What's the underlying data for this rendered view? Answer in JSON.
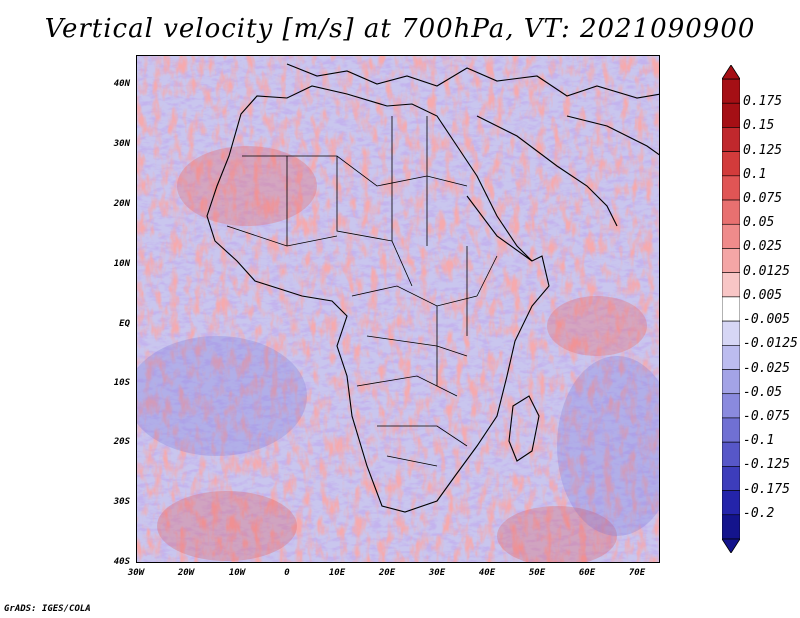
{
  "title": "Vertical velocity [m/s] at 700hPa, VT: 2021090900",
  "credit": "GrADS: IGES/COLA",
  "lat_labels": [
    "40N",
    "30N",
    "20N",
    "10N",
    "EQ",
    "10S",
    "20S",
    "30S",
    "40S"
  ],
  "lon_labels": [
    "30W",
    "20W",
    "10W",
    "0",
    "10E",
    "20E",
    "30E",
    "40E",
    "50E",
    "60E",
    "70E"
  ],
  "colorbar": {
    "labels": [
      "0.175",
      "0.15",
      "0.125",
      "0.1",
      "0.075",
      "0.05",
      "0.025",
      "0.0125",
      "0.005",
      "-0.005",
      "-0.0125",
      "-0.025",
      "-0.05",
      "-0.075",
      "-0.1",
      "-0.125",
      "-0.175",
      "-0.2"
    ],
    "colors": [
      "#a50f15",
      "#c0282d",
      "#d23b3b",
      "#e05555",
      "#e87070",
      "#ef8b8b",
      "#f4a6a6",
      "#f8c6c6",
      "#ffffff",
      "#d6d6f5",
      "#bcbcef",
      "#a3a3e6",
      "#8a8ade",
      "#7070d3",
      "#5757c8",
      "#3d3dbb",
      "#2424aa",
      "#14148c"
    ]
  },
  "colors": {
    "positive": "#e05555",
    "negative": "#6a6ad8",
    "background": "#ffffff"
  }
}
